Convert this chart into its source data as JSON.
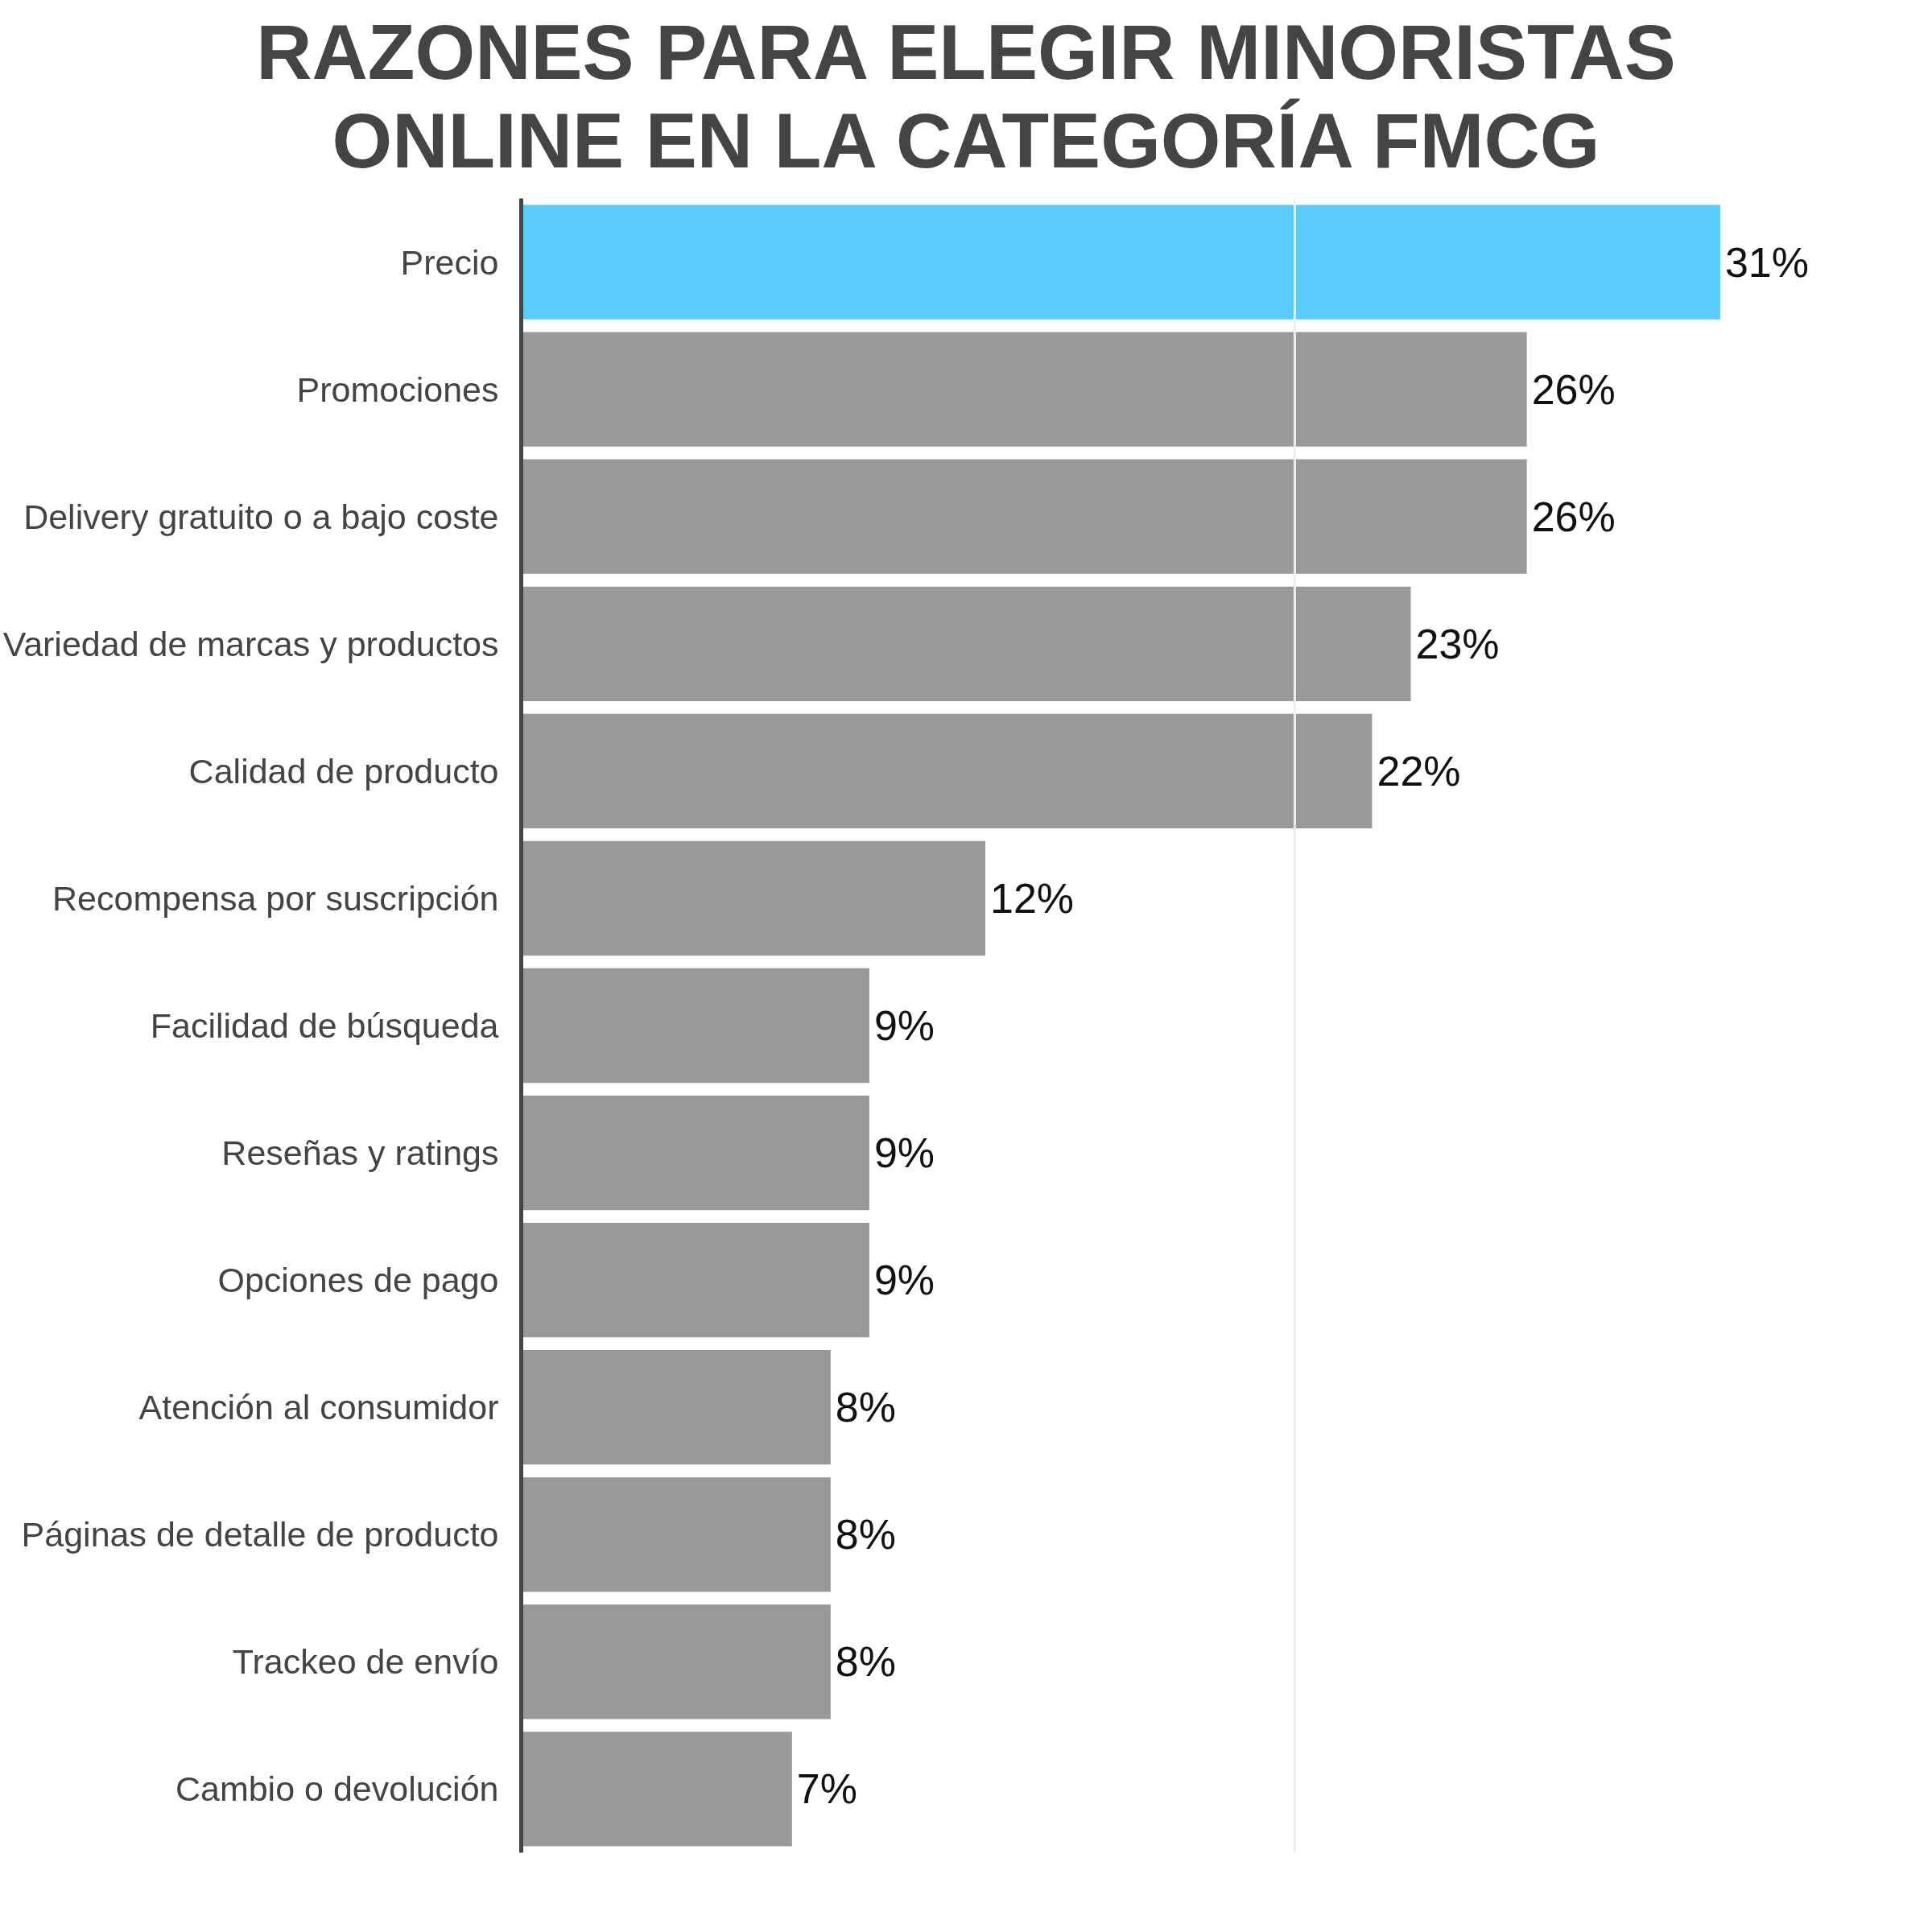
{
  "chart_data": {
    "type": "bar",
    "orientation": "horizontal",
    "title": "RAZONES PARA ELEGIR MINORISTAS ONLINE EN LA CATEGORÍA FMCG",
    "categories": [
      "Precio",
      "Promociones",
      "Delivery gratuito o a bajo coste",
      "Variedad de marcas y productos",
      "Calidad de producto",
      "Recompensa por suscripción",
      "Facilidad de búsqueda",
      "Reseñas y ratings",
      "Opciones de pago",
      "Atención al consumidor",
      "Páginas de detalle de producto",
      "Trackeo de envío",
      "Cambio o devolución"
    ],
    "values": [
      31,
      26,
      26,
      23,
      22,
      12,
      9,
      9,
      9,
      8,
      8,
      8,
      7
    ],
    "colors": [
      "#5bcbfc",
      "#999999",
      "#999999",
      "#999999",
      "#999999",
      "#999999",
      "#999999",
      "#999999",
      "#999999",
      "#999999",
      "#999999",
      "#999999",
      "#999999"
    ],
    "value_labels": [
      "31%",
      "26%",
      "26%",
      "23%",
      "22%",
      "12%",
      "9%",
      "9%",
      "9%",
      "8%",
      "8%",
      "8%",
      "7%"
    ],
    "ref_lines": [
      {
        "axis": "x",
        "value": 20,
        "color": "#eeeeee"
      }
    ],
    "tick_labels": "y"
  }
}
